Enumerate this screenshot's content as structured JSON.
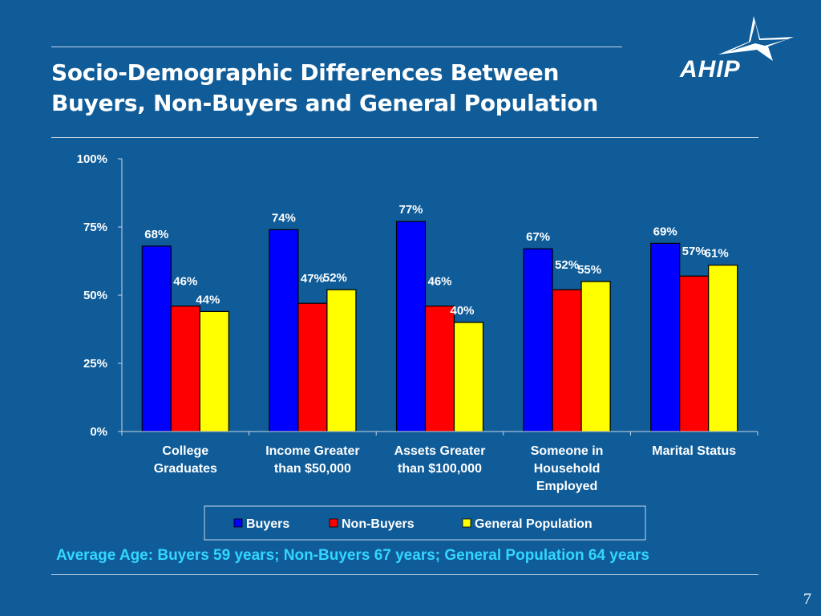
{
  "title": {
    "line1": "Socio-Demographic Differences Between",
    "line2": "Buyers, Non-Buyers and General Population"
  },
  "logo": {
    "text": "AHIP"
  },
  "footer": {
    "avg_age": "Average Age:  Buyers 59 years; Non-Buyers 67 years; General  Population 64 years",
    "page_number": "7"
  },
  "colors": {
    "background": "#0F5C99",
    "plot_area": "#FFFFFF",
    "buyers": "#0000FF",
    "non_buyers": "#FF0000",
    "general_population": "#FFFF00",
    "footnote": "#33D6FF"
  },
  "chart_data": {
    "type": "bar",
    "categories": [
      [
        "College",
        "Graduates"
      ],
      [
        "Income Greater",
        "than $50,000"
      ],
      [
        "Assets Greater",
        "than $100,000"
      ],
      [
        "Someone in",
        "Household",
        "Employed"
      ],
      [
        "Marital Status"
      ]
    ],
    "series": [
      {
        "name": "Buyers",
        "values": [
          68,
          74,
          77,
          67,
          69
        ],
        "color": "#0000FF"
      },
      {
        "name": "Non-Buyers",
        "values": [
          46,
          47,
          46,
          52,
          57
        ],
        "color": "#FF0000"
      },
      {
        "name": "General Population",
        "values": [
          44,
          52,
          40,
          55,
          61
        ],
        "color": "#FFFF00"
      }
    ],
    "ylim": [
      0,
      100
    ],
    "yticks": [
      "0%",
      "25%",
      "50%",
      "75%",
      "100%"
    ],
    "ytick_values": [
      0,
      25,
      50,
      75,
      100
    ],
    "value_suffix": "%",
    "grid": false,
    "legend_position": "bottom"
  }
}
